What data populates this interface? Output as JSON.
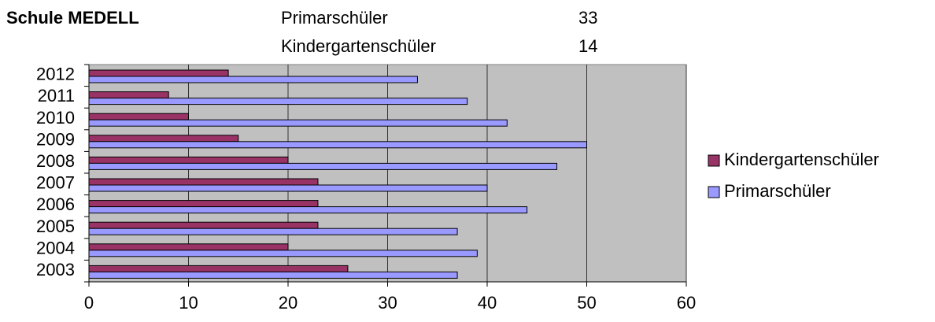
{
  "header": {
    "title": "Schule MEDELL",
    "rows": [
      [
        "Primarschüler",
        33
      ],
      [
        "Kindergartenschüler",
        14
      ]
    ]
  },
  "chart_data": {
    "type": "hbar",
    "categories": [
      "2003",
      "2004",
      "2005",
      "2006",
      "2007",
      "2008",
      "2009",
      "2010",
      "2011",
      "2012"
    ],
    "series": [
      {
        "name": "Kindergartenschüler",
        "color": "#993366",
        "values": [
          26,
          20,
          23,
          23,
          23,
          20,
          15,
          10,
          8,
          14
        ]
      },
      {
        "name": "Primarschüler",
        "color": "#9999ff",
        "values": [
          37,
          39,
          37,
          44,
          40,
          47,
          50,
          42,
          38,
          33
        ]
      }
    ],
    "xlim": [
      0,
      60
    ],
    "xticks": [
      0,
      10,
      20,
      30,
      40,
      50,
      60
    ],
    "grid": true,
    "legend": "right"
  }
}
